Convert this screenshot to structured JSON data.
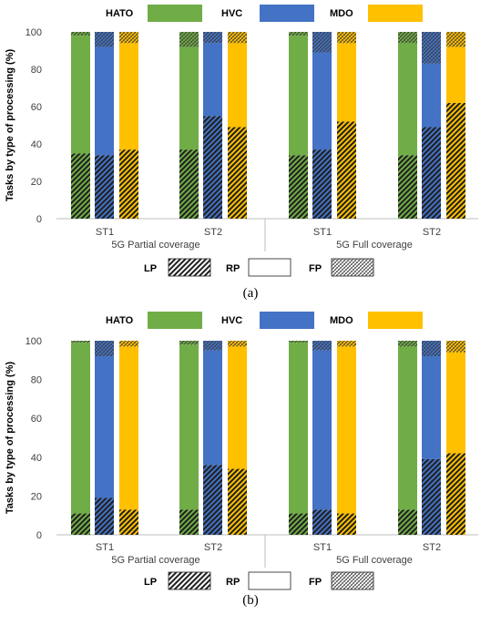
{
  "colors": {
    "HATO": "#70ad47",
    "HVC": "#4472c4",
    "MDO": "#ffc000",
    "axis": "#bfbfbf",
    "hatch": "#1f1f1f"
  },
  "chart_data": [
    {
      "caption": "(a)",
      "type": "bar",
      "stacked": true,
      "ylabel": "Tasks by type of processing (%)",
      "ylim": [
        0,
        100
      ],
      "yticks": [
        0,
        20,
        40,
        60,
        80,
        100
      ],
      "app_legend": [
        "HATO",
        "HVC",
        "MDO"
      ],
      "processing_legend": [
        "LP",
        "RP",
        "FP"
      ],
      "groups": [
        {
          "scenario": "5G Partial coverage",
          "subgroups": [
            {
              "label": "ST1",
              "bars": [
                {
                  "app": "HATO",
                  "LP": 35,
                  "RP": 63,
                  "FP": 2
                },
                {
                  "app": "HVC",
                  "LP": 34,
                  "RP": 58,
                  "FP": 8
                },
                {
                  "app": "MDO",
                  "LP": 37,
                  "RP": 57,
                  "FP": 6
                }
              ]
            },
            {
              "label": "ST2",
              "bars": [
                {
                  "app": "HATO",
                  "LP": 37,
                  "RP": 55,
                  "FP": 8
                },
                {
                  "app": "HVC",
                  "LP": 55,
                  "RP": 39,
                  "FP": 6
                },
                {
                  "app": "MDO",
                  "LP": 49,
                  "RP": 45,
                  "FP": 6
                }
              ]
            }
          ]
        },
        {
          "scenario": "5G Full coverage",
          "subgroups": [
            {
              "label": "ST1",
              "bars": [
                {
                  "app": "HATO",
                  "LP": 34,
                  "RP": 64,
                  "FP": 2
                },
                {
                  "app": "HVC",
                  "LP": 37,
                  "RP": 52,
                  "FP": 11
                },
                {
                  "app": "MDO",
                  "LP": 52,
                  "RP": 42,
                  "FP": 6
                }
              ]
            },
            {
              "label": "ST2",
              "bars": [
                {
                  "app": "HATO",
                  "LP": 34,
                  "RP": 60,
                  "FP": 6
                },
                {
                  "app": "HVC",
                  "LP": 49,
                  "RP": 34,
                  "FP": 17
                },
                {
                  "app": "MDO",
                  "LP": 62,
                  "RP": 30,
                  "FP": 8
                }
              ]
            }
          ]
        }
      ]
    },
    {
      "caption": "(b)",
      "type": "bar",
      "stacked": true,
      "ylabel": "Tasks by type of processing (%)",
      "ylim": [
        0,
        100
      ],
      "yticks": [
        0,
        20,
        40,
        60,
        80,
        100
      ],
      "app_legend": [
        "HATO",
        "HVC",
        "MDO"
      ],
      "processing_legend": [
        "LP",
        "RP",
        "FP"
      ],
      "groups": [
        {
          "scenario": "5G Partial coverage",
          "subgroups": [
            {
              "label": "ST1",
              "bars": [
                {
                  "app": "HATO",
                  "LP": 11,
                  "RP": 88,
                  "FP": 1
                },
                {
                  "app": "HVC",
                  "LP": 19,
                  "RP": 73,
                  "FP": 8
                },
                {
                  "app": "MDO",
                  "LP": 13,
                  "RP": 84,
                  "FP": 3
                }
              ]
            },
            {
              "label": "ST2",
              "bars": [
                {
                  "app": "HATO",
                  "LP": 13,
                  "RP": 85,
                  "FP": 2
                },
                {
                  "app": "HVC",
                  "LP": 36,
                  "RP": 59,
                  "FP": 5
                },
                {
                  "app": "MDO",
                  "LP": 34,
                  "RP": 63,
                  "FP": 3
                }
              ]
            }
          ]
        },
        {
          "scenario": "5G Full coverage",
          "subgroups": [
            {
              "label": "ST1",
              "bars": [
                {
                  "app": "HATO",
                  "LP": 11,
                  "RP": 88,
                  "FP": 1
                },
                {
                  "app": "HVC",
                  "LP": 13,
                  "RP": 82,
                  "FP": 5
                },
                {
                  "app": "MDO",
                  "LP": 11,
                  "RP": 86,
                  "FP": 3
                }
              ]
            },
            {
              "label": "ST2",
              "bars": [
                {
                  "app": "HATO",
                  "LP": 13,
                  "RP": 84,
                  "FP": 3
                },
                {
                  "app": "HVC",
                  "LP": 39,
                  "RP": 53,
                  "FP": 8
                },
                {
                  "app": "MDO",
                  "LP": 42,
                  "RP": 52,
                  "FP": 6
                }
              ]
            }
          ]
        }
      ]
    }
  ]
}
